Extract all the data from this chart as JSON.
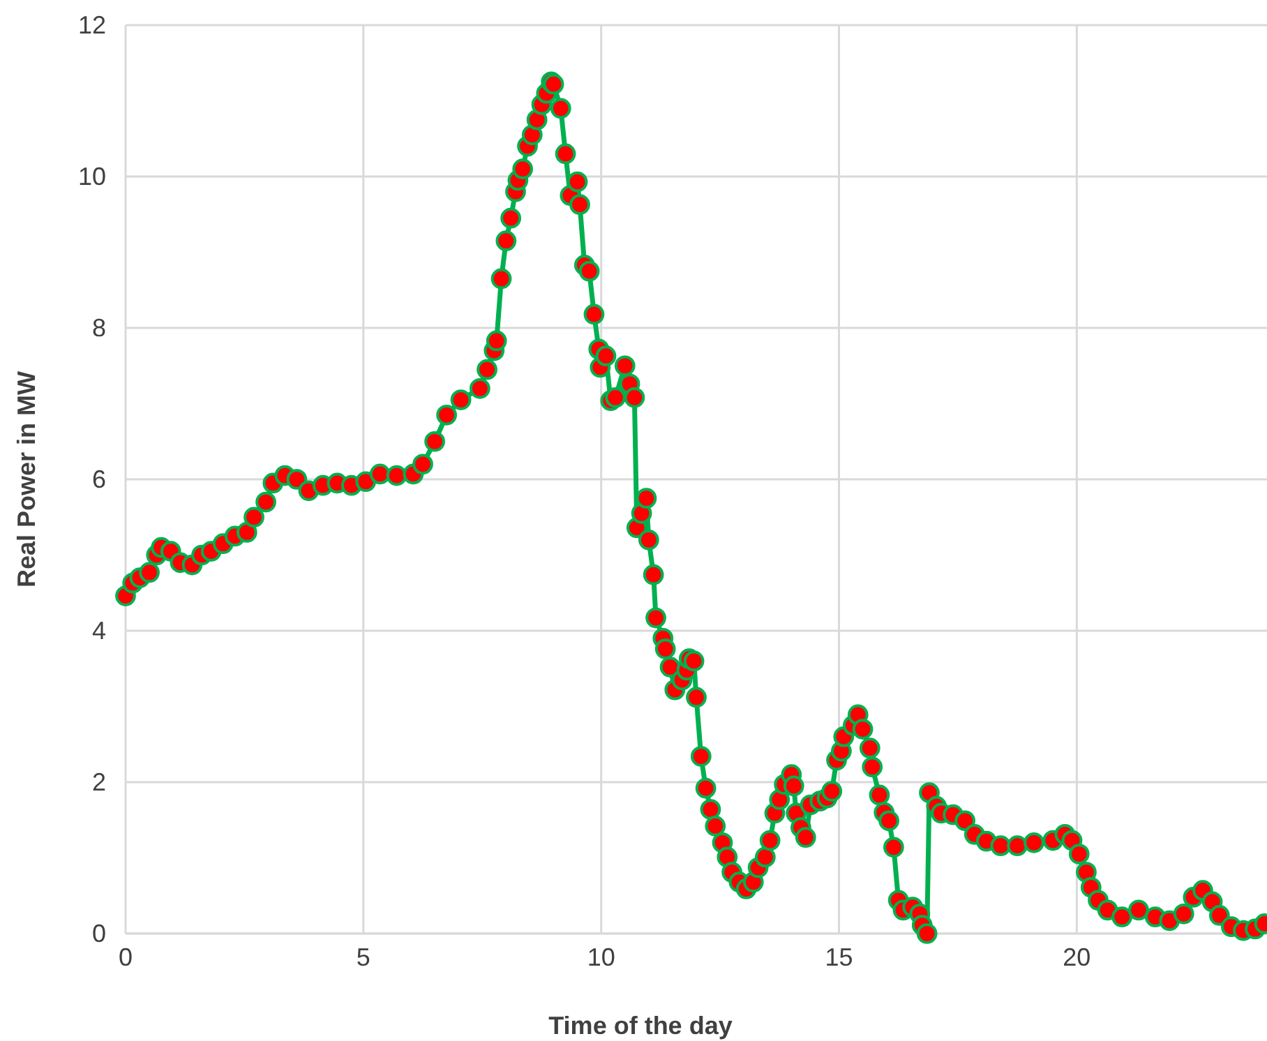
{
  "chart_data": {
    "type": "line",
    "xlabel": "Time of the day",
    "ylabel": "Real Power in MW",
    "xlim": [
      0,
      24
    ],
    "xticks": [
      0,
      5,
      10,
      15,
      20
    ],
    "ylim": [
      0,
      12
    ],
    "yticks": [
      0,
      2,
      4,
      6,
      8,
      10,
      12
    ],
    "grid": true,
    "marker": "circle",
    "line_style": "solid",
    "series": [
      {
        "color": "#00b050",
        "x": [
          0,
          0.15,
          0.3,
          0.5,
          0.65,
          0.75,
          0.95,
          1.15,
          1.4,
          1.6,
          1.8,
          2.05,
          2.3,
          2.55,
          2.7,
          2.95,
          3.1,
          3.35,
          3.6,
          3.85,
          4.15,
          4.45,
          4.75,
          5.05,
          5.35,
          5.7,
          6.05,
          6.25,
          6.5,
          6.75,
          7.05,
          7.45,
          7.6,
          7.75,
          7.8,
          7.9,
          8.0,
          8.1,
          8.2,
          8.25,
          8.35,
          8.45,
          8.55,
          8.65,
          8.75,
          8.85,
          8.95,
          9.0,
          9.15,
          9.25,
          9.35,
          9.5,
          9.55,
          9.65,
          9.75,
          9.85,
          9.95,
          9.98,
          10.1,
          10.2,
          10.3,
          10.5,
          10.6,
          10.7,
          10.75,
          10.85,
          10.95,
          11.0,
          11.1,
          11.15,
          11.3,
          11.35,
          11.45,
          11.55,
          11.7,
          11.8,
          11.85,
          11.95,
          12.0,
          12.1,
          12.2,
          12.3,
          12.4,
          12.55,
          12.65,
          12.75,
          12.9,
          13.05,
          13.2,
          13.3,
          13.45,
          13.55,
          13.65,
          13.75,
          13.85,
          14.0,
          14.05,
          14.1,
          14.2,
          14.3,
          14.4,
          14.6,
          14.75,
          14.85,
          14.95,
          15.05,
          15.1,
          15.3,
          15.4,
          15.5,
          15.65,
          15.7,
          15.85,
          15.95,
          16.05,
          16.15,
          16.25,
          16.35,
          16.55,
          16.7,
          16.75,
          16.85,
          16.9,
          17.05,
          17.15,
          17.4,
          17.65,
          17.85,
          18.1,
          18.4,
          18.75,
          19.1,
          19.5,
          19.75,
          19.9,
          20.05,
          20.2,
          20.3,
          20.45,
          20.65,
          20.95,
          21.3,
          21.65,
          21.95,
          22.25,
          22.45,
          22.65,
          22.85,
          23.0,
          23.25,
          23.5,
          23.75,
          23.95
        ],
        "values": [
          4.46,
          4.63,
          4.7,
          4.77,
          5.0,
          5.1,
          5.05,
          4.9,
          4.87,
          5.0,
          5.05,
          5.15,
          5.25,
          5.3,
          5.5,
          5.7,
          5.95,
          6.05,
          6.0,
          5.85,
          5.92,
          5.95,
          5.92,
          5.97,
          6.07,
          6.05,
          6.07,
          6.2,
          6.5,
          6.85,
          7.05,
          7.2,
          7.45,
          7.7,
          7.83,
          8.65,
          9.15,
          9.45,
          9.8,
          9.95,
          10.1,
          10.4,
          10.55,
          10.75,
          10.95,
          11.1,
          11.25,
          11.22,
          10.9,
          10.3,
          9.75,
          9.93,
          9.63,
          8.83,
          8.75,
          8.18,
          7.72,
          7.48,
          7.63,
          7.04,
          7.08,
          7.5,
          7.26,
          7.08,
          5.36,
          5.55,
          5.75,
          5.2,
          4.74,
          4.17,
          3.9,
          3.76,
          3.52,
          3.22,
          3.35,
          3.48,
          3.63,
          3.6,
          3.12,
          2.34,
          1.92,
          1.64,
          1.42,
          1.2,
          1.01,
          0.81,
          0.68,
          0.59,
          0.68,
          0.87,
          1.01,
          1.23,
          1.59,
          1.77,
          1.97,
          2.1,
          1.95,
          1.59,
          1.4,
          1.27,
          1.7,
          1.75,
          1.79,
          1.88,
          2.29,
          2.41,
          2.6,
          2.75,
          2.89,
          2.7,
          2.45,
          2.2,
          1.83,
          1.6,
          1.49,
          1.14,
          0.44,
          0.31,
          0.35,
          0.26,
          0.11,
          0.0,
          1.86,
          1.68,
          1.59,
          1.57,
          1.49,
          1.31,
          1.22,
          1.16,
          1.16,
          1.2,
          1.23,
          1.31,
          1.23,
          1.05,
          0.81,
          0.61,
          0.44,
          0.31,
          0.22,
          0.31,
          0.22,
          0.17,
          0.26,
          0.48,
          0.57,
          0.42,
          0.24,
          0.09,
          0.04,
          0.06,
          0.13
        ]
      }
    ]
  }
}
